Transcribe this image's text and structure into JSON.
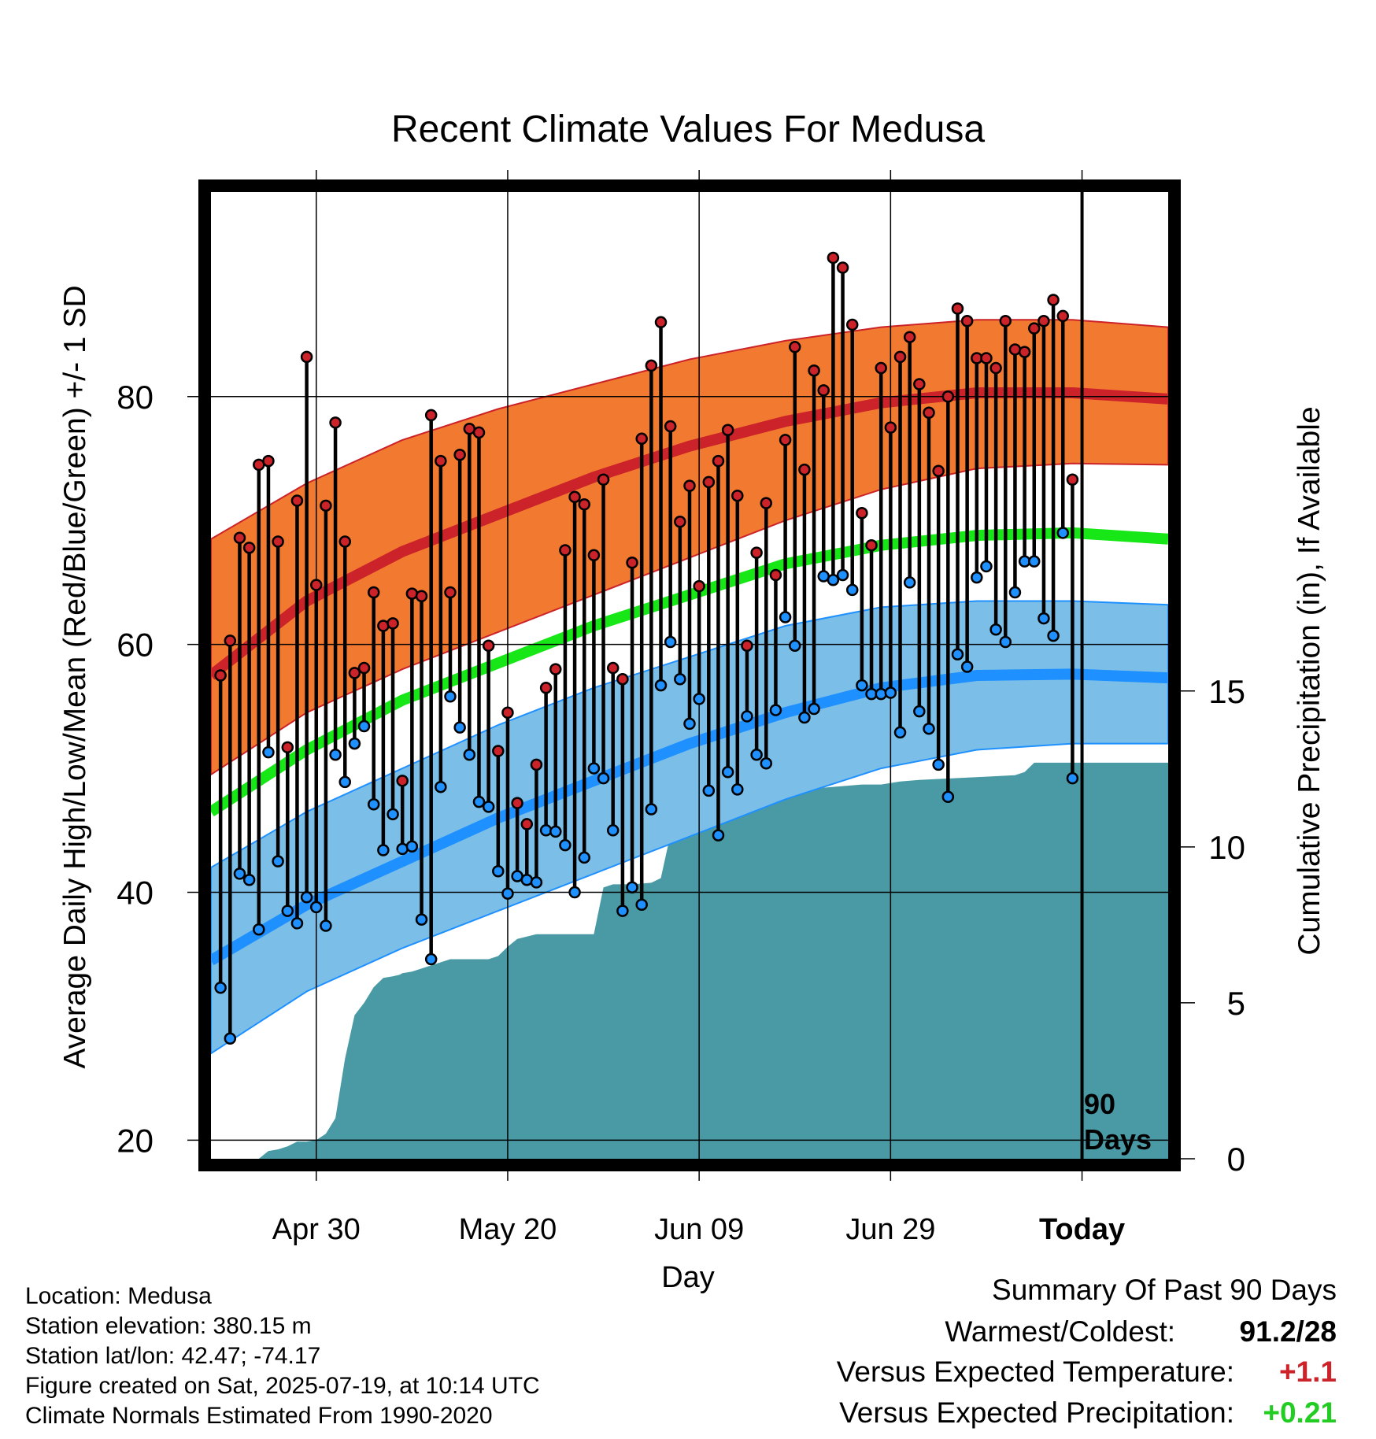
{
  "chart_data": {
    "type": "line",
    "title": "Recent Climate Values For Medusa",
    "xlabel": "Day",
    "ylabel": "Average Daily High/Low/Mean (Red/Blue/Green) +/- 1 SD",
    "y2label": "Cumulative Precipitation (in), If Available",
    "ylim": [
      18.5,
      96.5
    ],
    "y_ticks": [
      20,
      40,
      60,
      80
    ],
    "y2lim": [
      0,
      31
    ],
    "y2_ticks": [
      0,
      5,
      10,
      15
    ],
    "x_ticks": [
      {
        "label": "Apr 30",
        "day": 11
      },
      {
        "label": "May 20",
        "day": 31
      },
      {
        "label": "Jun 09",
        "day": 51
      },
      {
        "label": "Jun 29",
        "day": 71
      },
      {
        "label": "Today",
        "day": 91
      }
    ],
    "x_range_days": [
      0,
      100
    ],
    "today_marker": {
      "day": 91,
      "label_line1": "90",
      "label_line2": "Days"
    },
    "normals": {
      "days": [
        0,
        10,
        20,
        30,
        40,
        50,
        60,
        70,
        80,
        90,
        100
      ],
      "high_mean": [
        57.5,
        63.5,
        67.5,
        70.5,
        73.5,
        76.0,
        78.0,
        79.5,
        80.3,
        80.3,
        79.8
      ],
      "high_upper": [
        68.5,
        73.0,
        76.5,
        79.0,
        81.0,
        83.0,
        84.5,
        85.6,
        86.2,
        86.2,
        85.6
      ],
      "high_lower": [
        49.5,
        54.5,
        58.0,
        61.0,
        64.0,
        67.0,
        70.0,
        72.5,
        74.2,
        74.6,
        74.5
      ],
      "mean": [
        46.5,
        51.5,
        55.5,
        58.5,
        61.5,
        64.0,
        66.5,
        68.0,
        68.8,
        69.0,
        68.5
      ],
      "low_mean": [
        34.5,
        39.0,
        42.5,
        46.0,
        49.0,
        52.0,
        54.5,
        56.5,
        57.5,
        57.6,
        57.3
      ],
      "low_upper": [
        42.0,
        46.5,
        50.0,
        53.5,
        56.5,
        59.0,
        61.5,
        63.0,
        63.5,
        63.5,
        63.2
      ],
      "low_lower": [
        27.0,
        32.0,
        35.5,
        38.5,
        41.5,
        44.5,
        47.5,
        50.0,
        51.5,
        52.0,
        52.0
      ]
    },
    "observed": {
      "days": [
        1,
        2,
        3,
        4,
        5,
        6,
        7,
        8,
        9,
        10,
        11,
        12,
        13,
        14,
        15,
        16,
        17,
        18,
        19,
        20,
        21,
        22,
        23,
        24,
        25,
        26,
        27,
        28,
        29,
        30,
        31,
        32,
        33,
        34,
        35,
        36,
        37,
        38,
        39,
        40,
        41,
        42,
        43,
        44,
        45,
        46,
        47,
        48,
        49,
        50,
        51,
        52,
        53,
        54,
        55,
        56,
        57,
        58,
        59,
        60,
        61,
        62,
        63,
        64,
        65,
        66,
        67,
        68,
        69,
        70,
        71,
        72,
        73,
        74,
        75,
        76,
        77,
        78,
        79,
        80,
        81,
        82,
        83,
        84,
        85,
        86,
        87,
        88,
        89,
        90
      ],
      "high": [
        57.5,
        60.3,
        68.6,
        67.8,
        74.5,
        74.8,
        68.3,
        51.7,
        71.6,
        83.2,
        64.8,
        71.2,
        77.9,
        68.3,
        57.7,
        58.1,
        64.2,
        61.5,
        61.7,
        49.0,
        64.1,
        63.9,
        78.5,
        74.8,
        64.2,
        75.3,
        77.4,
        77.1,
        59.9,
        51.4,
        54.5,
        47.2,
        45.5,
        50.3,
        56.5,
        58.0,
        67.6,
        71.9,
        71.3,
        67.2,
        73.3,
        58.1,
        57.2,
        66.6,
        76.6,
        82.5,
        86.0,
        77.6,
        69.9,
        72.8,
        64.7,
        73.1,
        74.8,
        77.3,
        72.0,
        59.9,
        67.4,
        71.4,
        65.6,
        76.5,
        84.0,
        74.1,
        82.1,
        80.5,
        91.2,
        90.4,
        85.8,
        70.6,
        68.0,
        82.3,
        77.5,
        83.2,
        84.8,
        81.0,
        78.7,
        74.0,
        80.0,
        87.1,
        86.1,
        83.1,
        83.1,
        82.3,
        86.1,
        83.8,
        83.6,
        85.5,
        86.1,
        87.8,
        86.5,
        73.3
      ],
      "low": [
        32.3,
        28.2,
        41.5,
        41.0,
        37.0,
        51.3,
        42.5,
        38.5,
        37.5,
        39.6,
        38.8,
        37.3,
        51.1,
        48.9,
        52.0,
        53.4,
        47.1,
        43.4,
        46.3,
        43.5,
        43.7,
        37.8,
        34.6,
        48.5,
        55.8,
        53.3,
        51.1,
        47.3,
        46.9,
        41.7,
        39.9,
        41.3,
        41.0,
        40.8,
        45.0,
        44.9,
        43.8,
        40.0,
        42.8,
        50.0,
        49.2,
        45.0,
        38.5,
        40.4,
        39.0,
        46.7,
        56.7,
        60.2,
        57.2,
        53.6,
        55.6,
        48.2,
        44.6,
        49.7,
        48.3,
        54.2,
        51.1,
        50.4,
        54.7,
        62.2,
        59.9,
        54.1,
        54.8,
        65.5,
        65.2,
        65.6,
        64.4,
        56.7,
        56.0,
        56.0,
        56.1,
        52.9,
        65.0,
        54.6,
        53.2,
        50.3,
        47.7,
        59.2,
        58.2,
        65.4,
        66.3,
        61.2,
        60.2,
        64.2,
        66.7,
        66.7,
        62.1,
        60.7,
        69.0,
        49.2
      ]
    },
    "precipitation": {
      "days": [
        0,
        5,
        6,
        7,
        8,
        9,
        10,
        11,
        12,
        13,
        14,
        15,
        16,
        17,
        18,
        19,
        19.7,
        20,
        21,
        23,
        25,
        29,
        30,
        31,
        32,
        34,
        40,
        41,
        42,
        44,
        46,
        47,
        48,
        49,
        50,
        53,
        54,
        56,
        60,
        61,
        64,
        68,
        70,
        72,
        74,
        84,
        85,
        86,
        100
      ],
      "cumulative": [
        0,
        0,
        0.25,
        0.3,
        0.4,
        0.55,
        0.55,
        0.6,
        0.8,
        1.3,
        3.2,
        4.6,
        5.0,
        5.5,
        5.8,
        5.85,
        5.9,
        5.95,
        6.0,
        6.2,
        6.4,
        6.4,
        6.5,
        6.8,
        7.05,
        7.2,
        7.2,
        8.7,
        8.8,
        8.8,
        8.85,
        9.0,
        10.4,
        10.5,
        10.9,
        11.0,
        11.3,
        11.5,
        11.6,
        11.7,
        11.9,
        12.0,
        12.0,
        12.1,
        12.15,
        12.3,
        12.4,
        12.7,
        12.7
      ]
    }
  },
  "info": {
    "location": "Location: Medusa",
    "elevation": "Station elevation: 380.15 m",
    "latlon": "Station lat/lon: 42.47; -74.17",
    "created": "Figure created on Sat, 2025-07-19, at 10:14 UTC",
    "normals_period": "Climate Normals Estimated From 1990-2020"
  },
  "summary": {
    "title": "Summary Of Past 90 Days",
    "warm_cold_label": "Warmest/Coldest:",
    "warm_cold_value": "91.2/28",
    "temp_label": "Versus Expected Temperature:",
    "temp_value": "+1.1",
    "precip_label": "Versus Expected Precipitation:",
    "precip_value": "+0.21"
  },
  "colors": {
    "high_band": "#f27a30",
    "high_line": "#cc2229",
    "mean_line": "#17e617",
    "low_band": "#7bbfe8",
    "low_line": "#1e90ff",
    "precip_fill": "#4a9aa5",
    "high_dot": "#cc2229",
    "low_dot": "#1e90ff",
    "temp_value": "#cc2229",
    "precip_value": "#22cc22"
  }
}
